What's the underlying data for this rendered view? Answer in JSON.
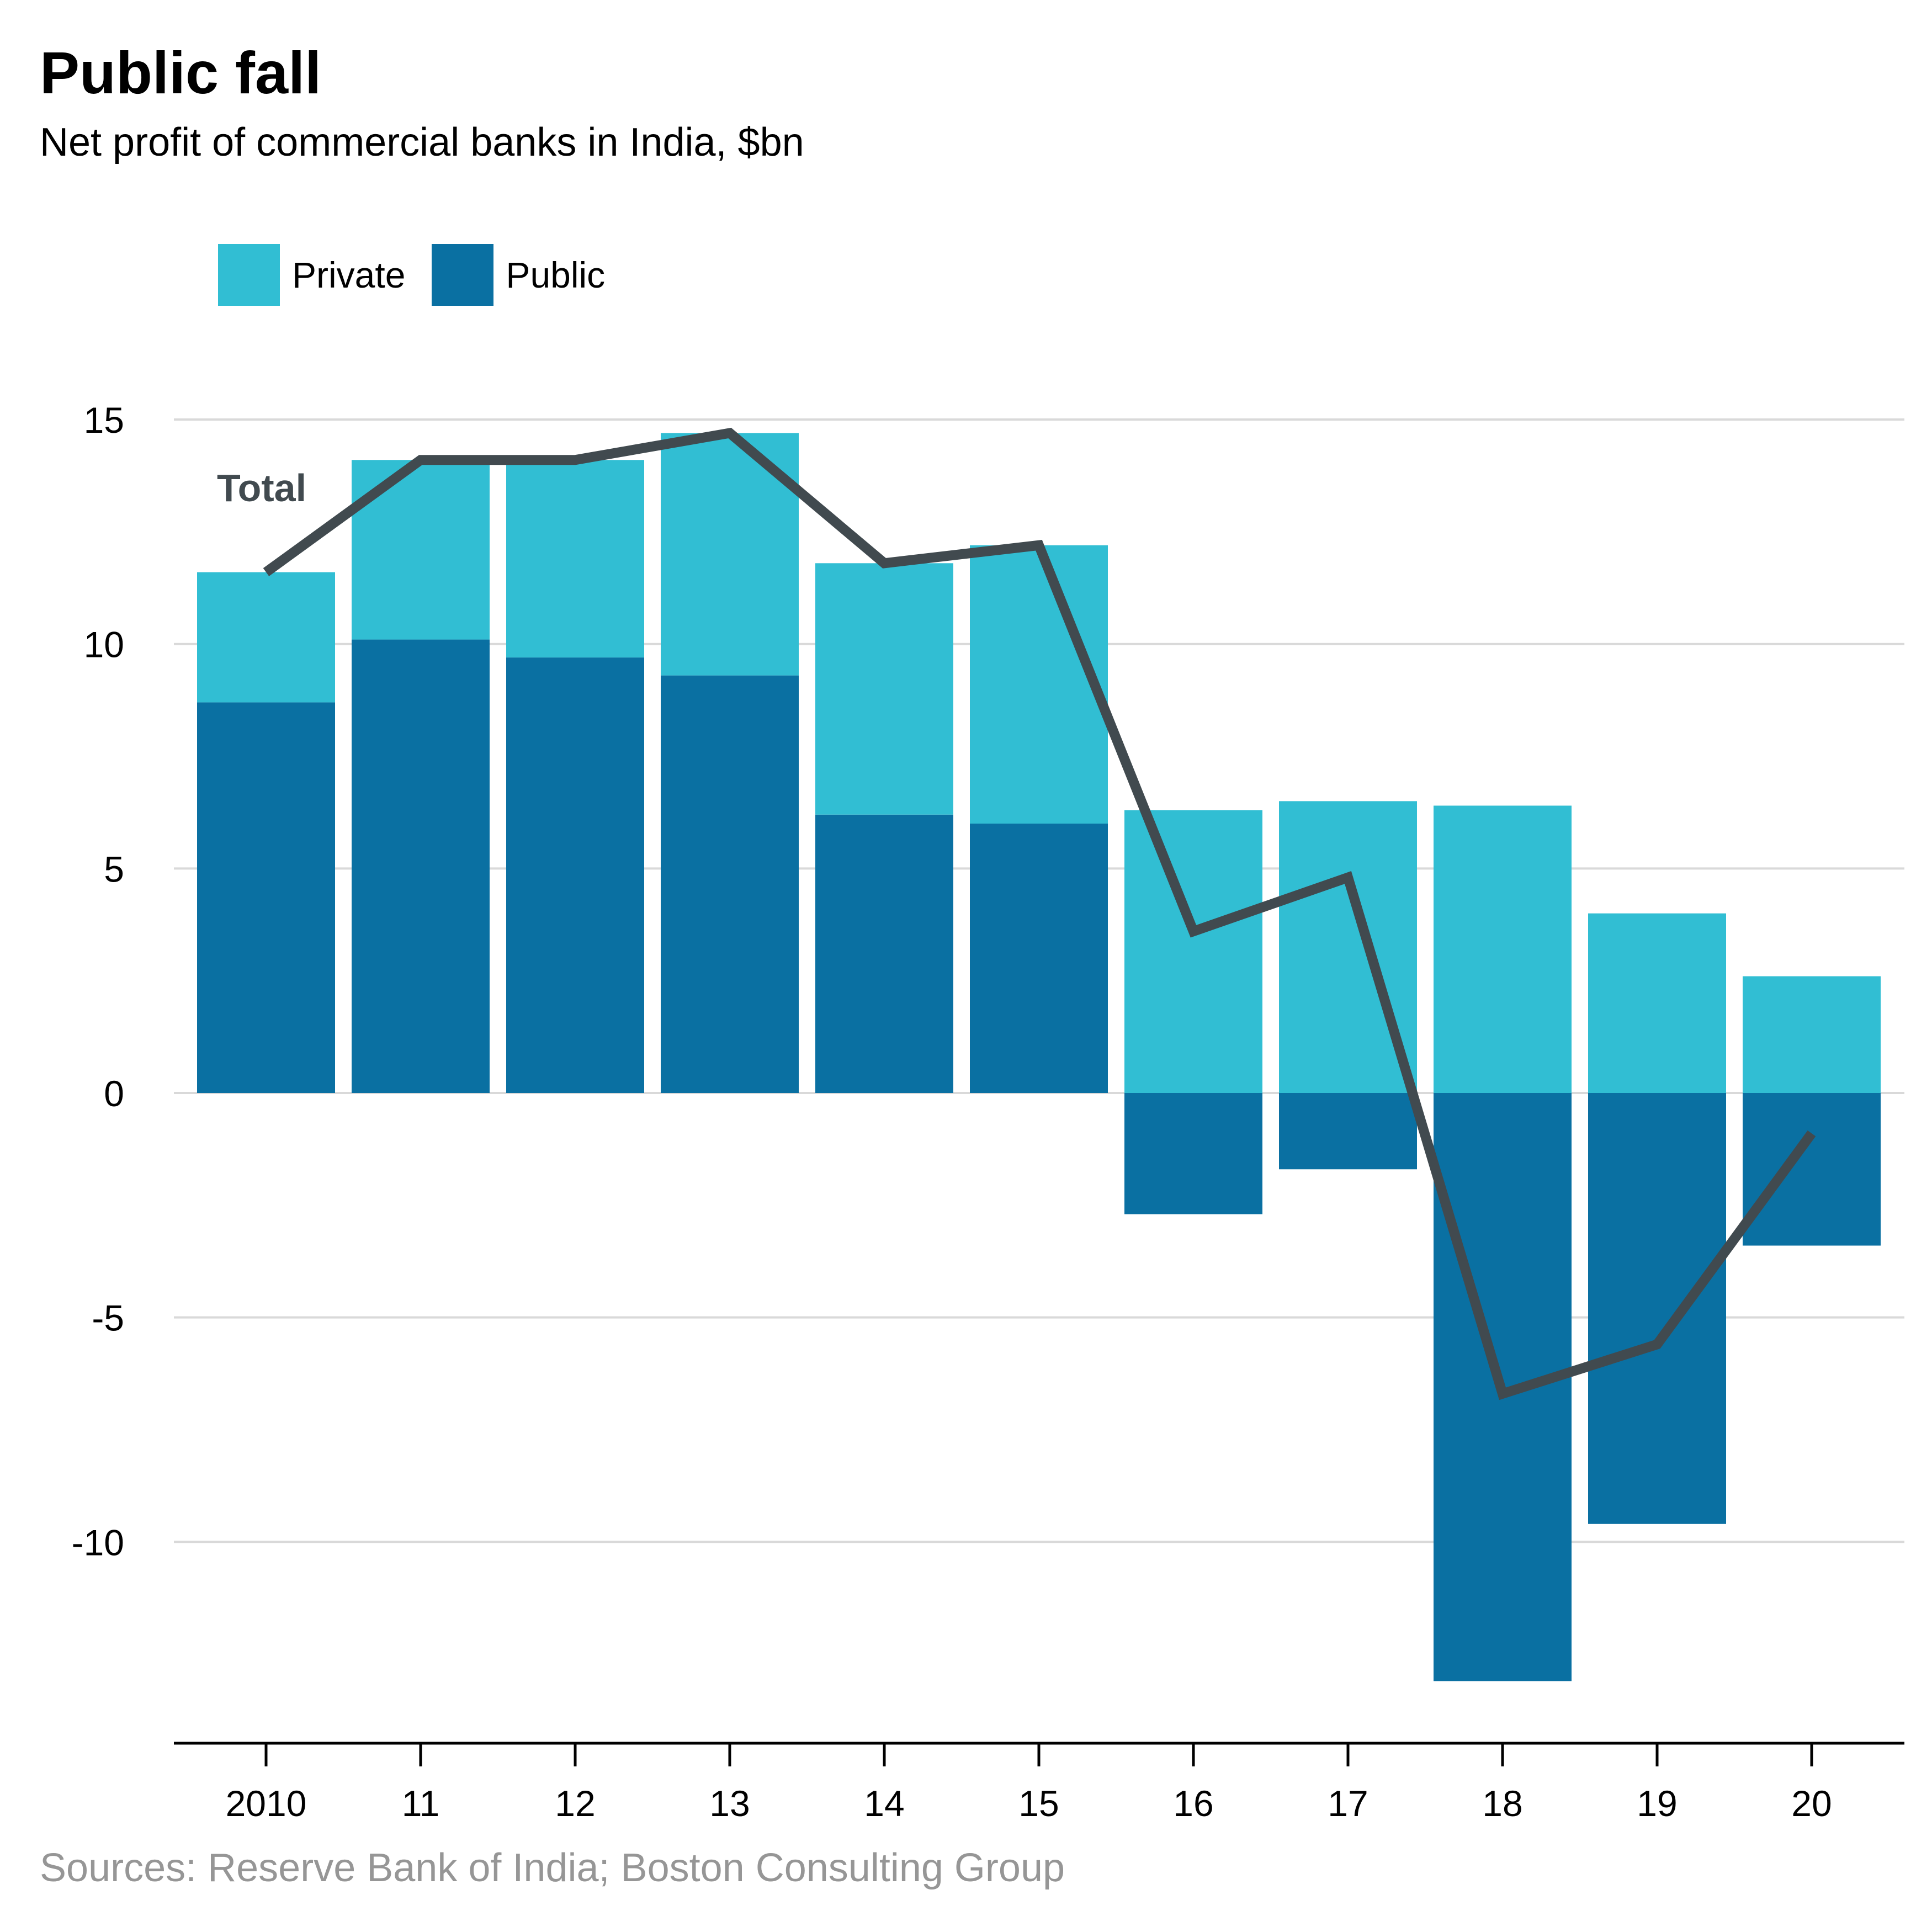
{
  "header": {
    "title": "Public fall",
    "subtitle": "Net profit of commercial banks in India, $bn"
  },
  "footer": {
    "source": "Sources: Reserve Bank of India; Boston Consulting Group"
  },
  "legend": {
    "private_label": "Private",
    "public_label": "Public"
  },
  "colors": {
    "private": "#31BED3",
    "public": "#0A70A2",
    "total": "#414A4F",
    "grid": "#D9D9D9",
    "axis": "#000000"
  },
  "chart_data": {
    "type": "bar",
    "stacked": true,
    "title": "Public fall",
    "subtitle": "Net profit of commercial banks in India, $bn",
    "categories": [
      "2010",
      "11",
      "12",
      "13",
      "14",
      "15",
      "16",
      "17",
      "18",
      "19",
      "20"
    ],
    "series": [
      {
        "name": "Private",
        "values": [
          2.9,
          4.0,
          4.4,
          5.4,
          5.6,
          6.2,
          6.3,
          6.5,
          6.4,
          4.0,
          2.6
        ]
      },
      {
        "name": "Public",
        "values": [
          8.7,
          10.1,
          9.7,
          9.3,
          6.2,
          6.0,
          -2.7,
          -1.7,
          -13.1,
          -9.6,
          -3.4
        ]
      }
    ],
    "line": {
      "name": "Total",
      "label": "Total",
      "values": [
        11.6,
        14.1,
        14.1,
        14.7,
        11.8,
        12.2,
        3.6,
        4.8,
        -6.7,
        -5.6,
        -0.9
      ]
    },
    "yticks": [
      "15",
      "10",
      "5",
      "0",
      "-5",
      "-10"
    ],
    "ytick_values": [
      15,
      10,
      5,
      0,
      -5,
      -10
    ],
    "ylim": [
      -14.5,
      15
    ],
    "xlabel": "",
    "ylabel": "",
    "grid": true,
    "legend_position": "top-left"
  }
}
